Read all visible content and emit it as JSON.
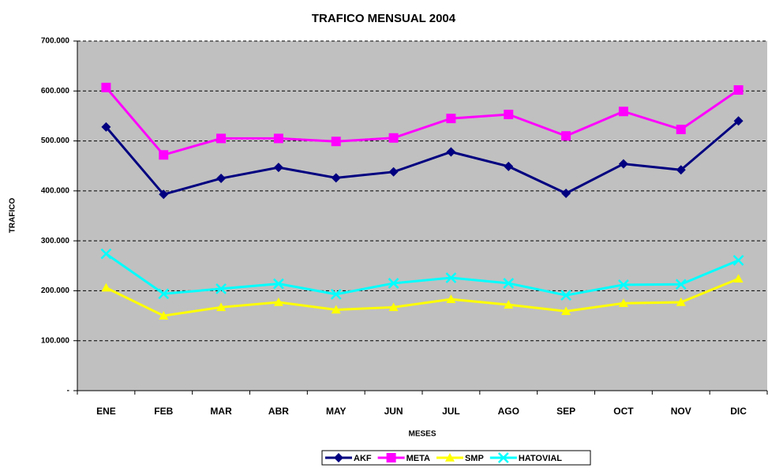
{
  "chart_data": {
    "type": "line",
    "title": "TRAFICO MENSUAL 2004",
    "x_label": "MESES",
    "y_label": "TRAFICO",
    "categories": [
      "ENE",
      "FEB",
      "MAR",
      "ABR",
      "MAY",
      "JUN",
      "JUL",
      "AGO",
      "SEP",
      "OCT",
      "NOV",
      "DIC"
    ],
    "series": [
      {
        "name": "AKF",
        "color": "#000080",
        "marker": "diamond",
        "values": [
          528000,
          393000,
          425000,
          447000,
          426000,
          438000,
          478000,
          449000,
          395000,
          454000,
          442000,
          540000
        ]
      },
      {
        "name": "META",
        "color": "#ff00ff",
        "marker": "square",
        "values": [
          607000,
          472000,
          505000,
          505000,
          499000,
          506000,
          545000,
          553000,
          510000,
          559000,
          523000,
          602000
        ]
      },
      {
        "name": "SMP",
        "color": "#ffff00",
        "marker": "triangle",
        "values": [
          206000,
          150000,
          167000,
          177000,
          162000,
          167000,
          183000,
          172000,
          159000,
          175000,
          177000,
          224000
        ]
      },
      {
        "name": "HATOVIAL",
        "color": "#00ffff",
        "marker": "x",
        "values": [
          274000,
          194000,
          204000,
          214000,
          193000,
          215000,
          226000,
          215000,
          191000,
          212000,
          213000,
          261000
        ]
      }
    ],
    "ylim": [
      0,
      700000
    ],
    "yticks": [
      {
        "value": 0,
        "label": "-"
      },
      {
        "value": 100000,
        "label": "100.000"
      },
      {
        "value": 200000,
        "label": "200.000"
      },
      {
        "value": 300000,
        "label": "300.000"
      },
      {
        "value": 400000,
        "label": "400.000"
      },
      {
        "value": 500000,
        "label": "500.000"
      },
      {
        "value": 600000,
        "label": "600.000"
      },
      {
        "value": 700000,
        "label": "700.000"
      }
    ],
    "grid": true,
    "legend": "bottom"
  }
}
